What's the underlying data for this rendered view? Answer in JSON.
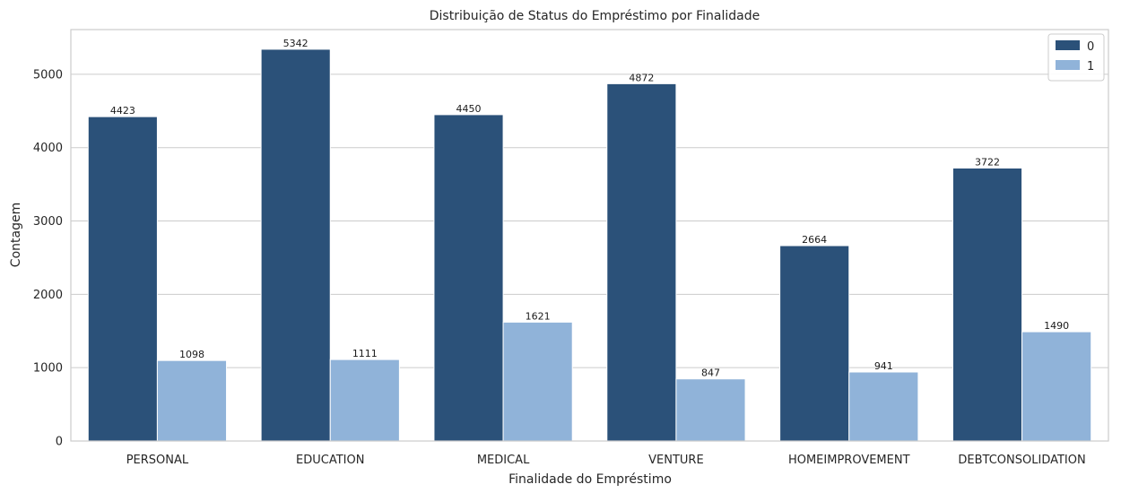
{
  "chart_data": {
    "type": "bar",
    "title": "Distribuição de Status do Empréstimo por Finalidade",
    "xlabel": "Finalidade do Empréstimo",
    "ylabel": "Contagem",
    "categories": [
      "PERSONAL",
      "EDUCATION",
      "MEDICAL",
      "VENTURE",
      "HOMEIMPROVEMENT",
      "DEBTCONSOLIDATION"
    ],
    "series": [
      {
        "name": "0",
        "color": "#2b5179",
        "values": [
          4423,
          5342,
          4450,
          4872,
          2664,
          3722
        ]
      },
      {
        "name": "1",
        "color": "#90b3d9",
        "values": [
          1098,
          1111,
          1621,
          847,
          941,
          1490
        ]
      }
    ],
    "ylim": [
      0,
      5610
    ],
    "yticks": [
      0,
      1000,
      2000,
      3000,
      4000,
      5000
    ],
    "grid": true,
    "legend": "top-right"
  }
}
